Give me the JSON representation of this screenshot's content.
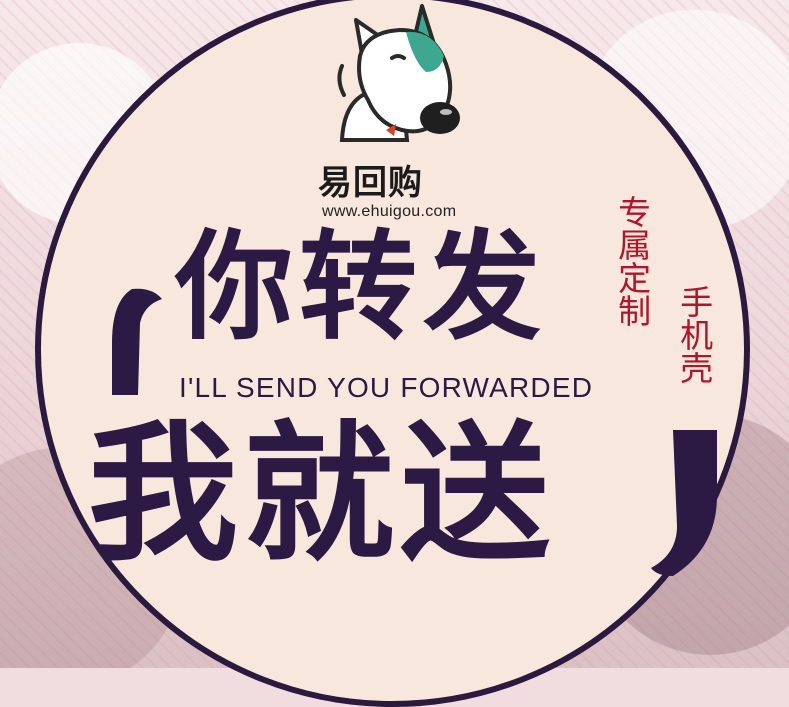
{
  "brand": {
    "name": "易回购",
    "url": "www.ehuigou.com"
  },
  "headline": {
    "line1": "你转发",
    "subtitle": "I'LL SEND YOU FORWARDED",
    "line2": "我就送"
  },
  "tags": {
    "vertical_1": "专属定制",
    "vertical_2": "手机壳"
  },
  "colors": {
    "headline": "#2c1a44",
    "accent_red": "#b0162b",
    "disc_fill": "#f7e7dc",
    "dog_teal": "#3ea78f"
  },
  "icons": {
    "logo": "bull-terrier-dog-icon"
  }
}
